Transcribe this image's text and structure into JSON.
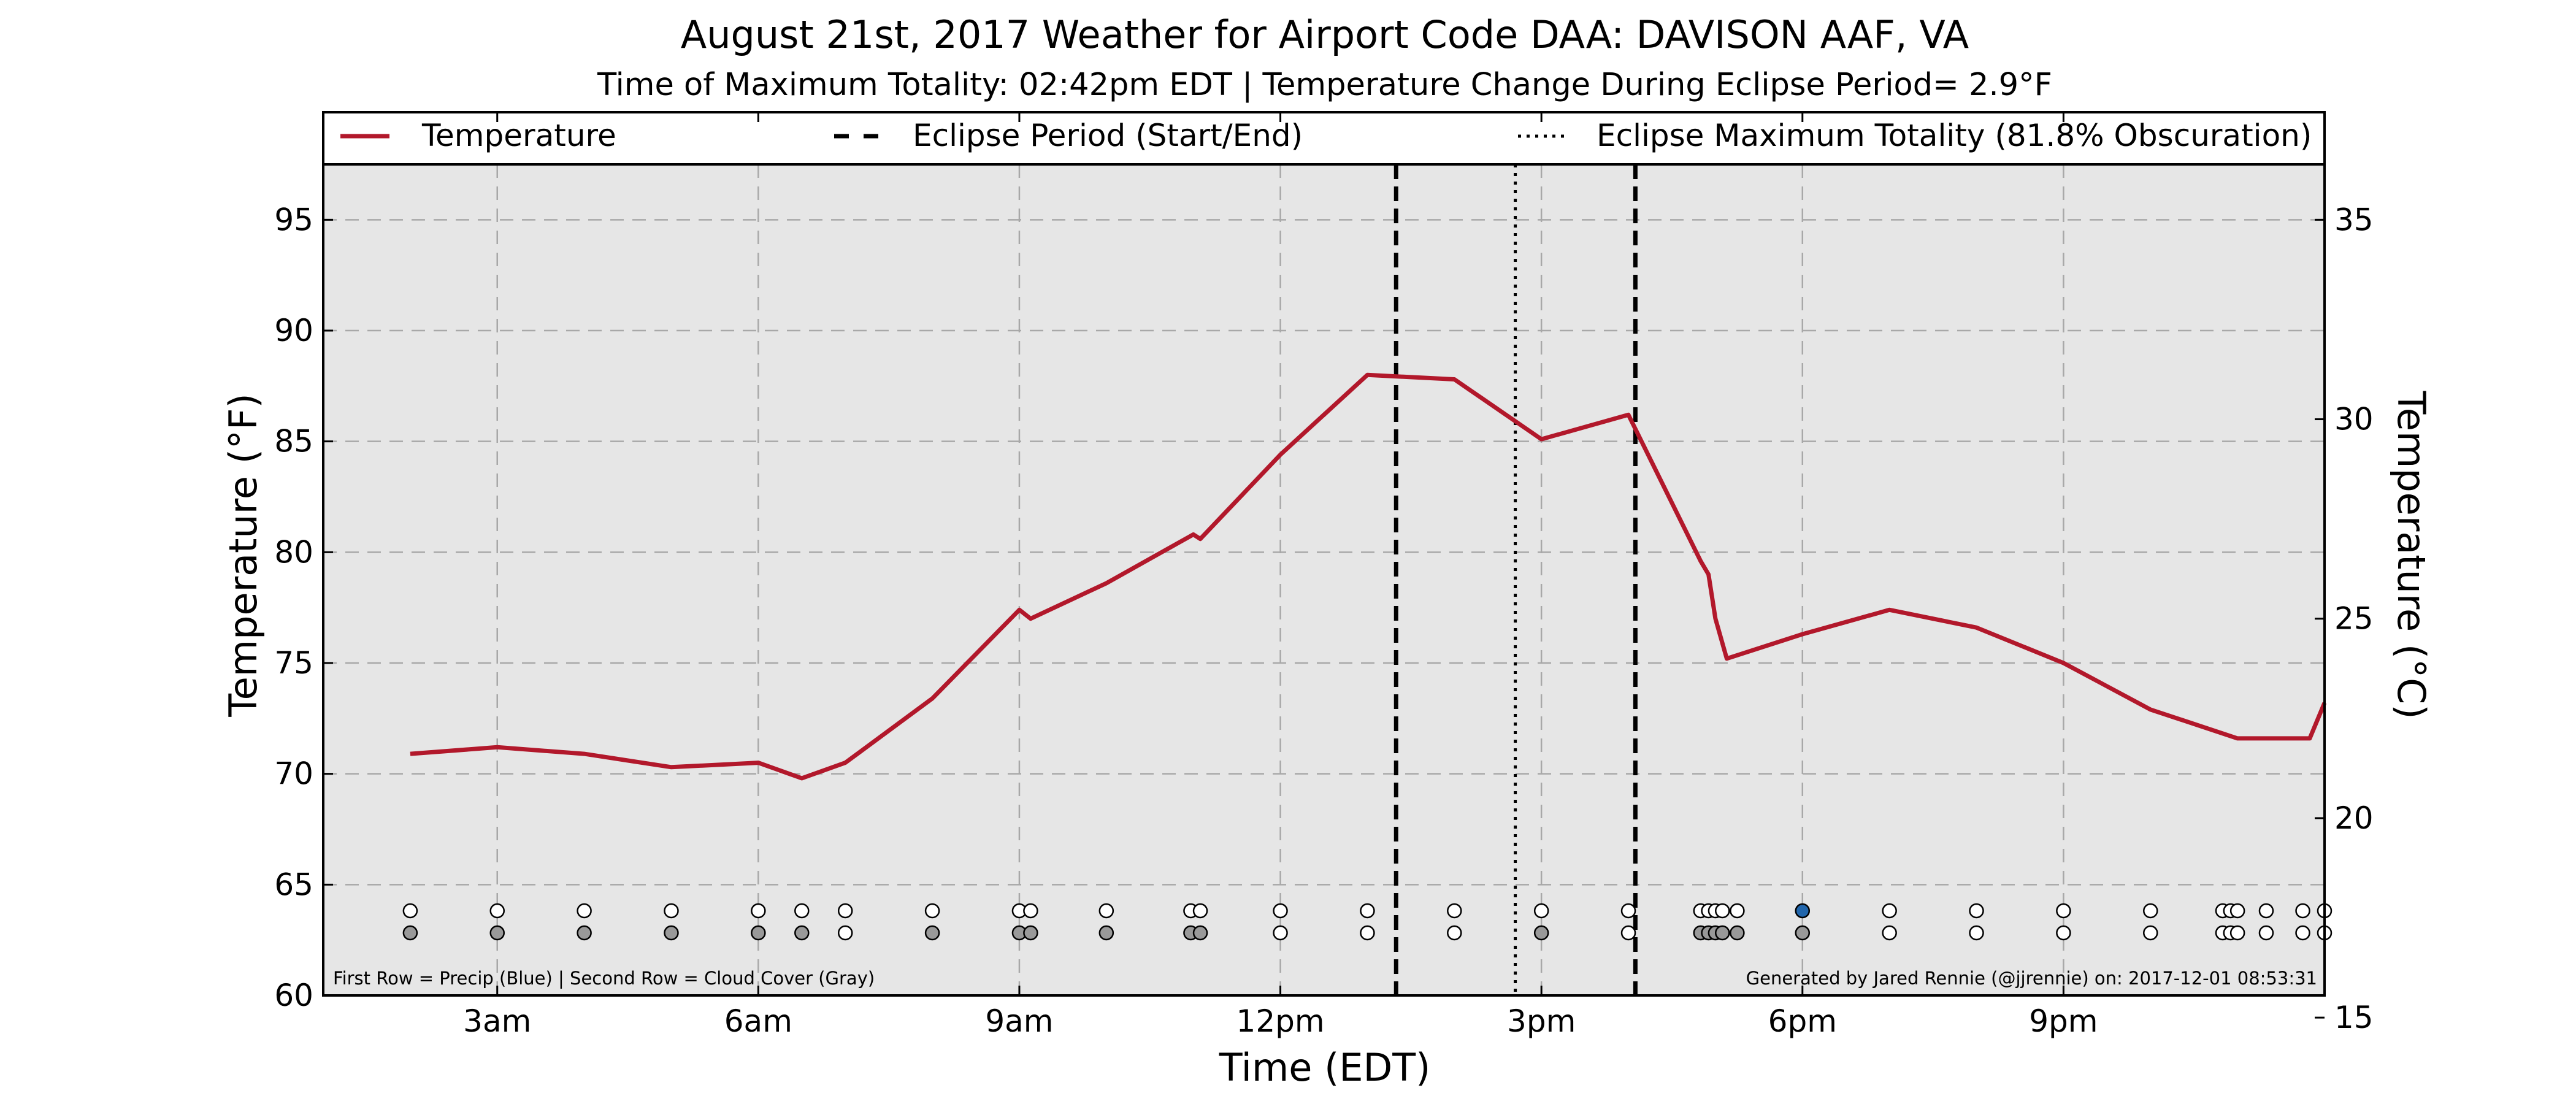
{
  "chart_data": {
    "type": "line",
    "title": "August 21st, 2017 Weather for Airport Code DAA: DAVISON AAF, VA",
    "subtitle": "Time of Maximum Totality: 02:42pm EDT | Temperature Change During Eclipse Period= 2.9°F",
    "xlabel": "Time (EDT)",
    "ylabel": "Temperature (°F)",
    "ylabel_right": "Temperature (°C)",
    "xlim": [
      1.0,
      24.0
    ],
    "ylim": [
      60,
      97.5
    ],
    "x_ticks": [
      3,
      6,
      9,
      12,
      15,
      18,
      21
    ],
    "x_tick_labels": [
      "3am",
      "6am",
      "9am",
      "12pm",
      "3pm",
      "6pm",
      "9pm"
    ],
    "y_ticks": [
      60,
      65,
      70,
      75,
      80,
      85,
      90,
      95
    ],
    "y_tick_labels": [
      "60",
      "65",
      "70",
      "75",
      "80",
      "85",
      "90",
      "95"
    ],
    "y2_ticks": [
      15,
      20,
      25,
      30,
      35
    ],
    "y2_tick_labels": [
      "15",
      "20",
      "25",
      "30",
      "35"
    ],
    "grid": true,
    "legend_position": "top",
    "legend": [
      {
        "label": "Temperature",
        "style": "solid",
        "color": "#b2182b"
      },
      {
        "label": "Eclipse Period (Start/End)",
        "style": "dashed",
        "color": "#000000"
      },
      {
        "label": "Eclipse Maximum Totality (81.8% Obscuration)",
        "style": "dotted",
        "color": "#000000"
      }
    ],
    "series": [
      {
        "name": "Temperature",
        "color": "#b2182b",
        "x": [
          2.0,
          3.0,
          4.0,
          5.0,
          6.0,
          6.5,
          7.0,
          8.0,
          9.0,
          9.13,
          10.0,
          11.0,
          11.08,
          12.0,
          13.0,
          14.0,
          15.0,
          16.0,
          16.83,
          16.92,
          17.0,
          17.13,
          18.0,
          19.0,
          20.0,
          21.0,
          22.0,
          23.0,
          23.83,
          24.0
        ],
        "y": [
          70.9,
          71.2,
          70.9,
          70.3,
          70.5,
          69.8,
          70.5,
          73.4,
          77.4,
          77.0,
          78.6,
          80.8,
          80.6,
          84.4,
          88.0,
          87.8,
          85.1,
          86.2,
          79.6,
          79.0,
          77.0,
          75.2,
          76.3,
          77.4,
          76.6,
          75.0,
          72.9,
          71.6,
          71.6,
          73.2
        ]
      }
    ],
    "eclipse_start": 13.33,
    "eclipse_end": 16.08,
    "eclipse_max": 14.7,
    "precip_row_times": [
      2.0,
      3.0,
      4.0,
      5.0,
      6.0,
      6.5,
      7.0,
      8.0,
      9.0,
      9.13,
      10.0,
      10.97,
      11.08,
      12.0,
      13.0,
      14.0,
      15.0,
      16.0,
      16.83,
      16.92,
      17.0,
      17.08,
      17.25,
      18.0,
      19.0,
      20.0,
      21.0,
      22.0,
      22.83,
      22.92,
      23.0,
      23.33,
      23.75,
      24.0
    ],
    "precip_blue_times": [
      18.0
    ],
    "cloud_row_times": [
      2.0,
      3.0,
      4.0,
      5.0,
      6.0,
      6.5,
      7.0,
      8.0,
      9.0,
      9.13,
      10.0,
      10.97,
      11.08,
      12.0,
      13.0,
      14.0,
      15.0,
      16.0,
      16.83,
      16.92,
      17.0,
      17.08,
      17.25,
      18.0,
      19.0,
      20.0,
      21.0,
      22.0,
      22.83,
      22.92,
      23.0,
      23.33,
      23.75,
      24.0
    ],
    "cloud_gray_times": [
      2.0,
      3.0,
      4.0,
      5.0,
      6.0,
      6.5,
      8.0,
      9.0,
      9.13,
      10.0,
      10.97,
      11.08,
      15.0,
      16.83,
      16.92,
      17.0,
      17.08,
      17.25,
      18.0
    ],
    "footnote_left": "First Row = Precip (Blue) | Second Row = Cloud Cover (Gray)",
    "footnote_right": "Generated by Jared Rennie (@jjrennie) on: 2017-12-01 08:53:31"
  },
  "colors": {
    "plot_background": "#e6e6e6",
    "temperature_line": "#b2182b",
    "grid": "#a8a8a8",
    "precip_marker": "#2166ac",
    "cloud_marker": "#999999"
  }
}
